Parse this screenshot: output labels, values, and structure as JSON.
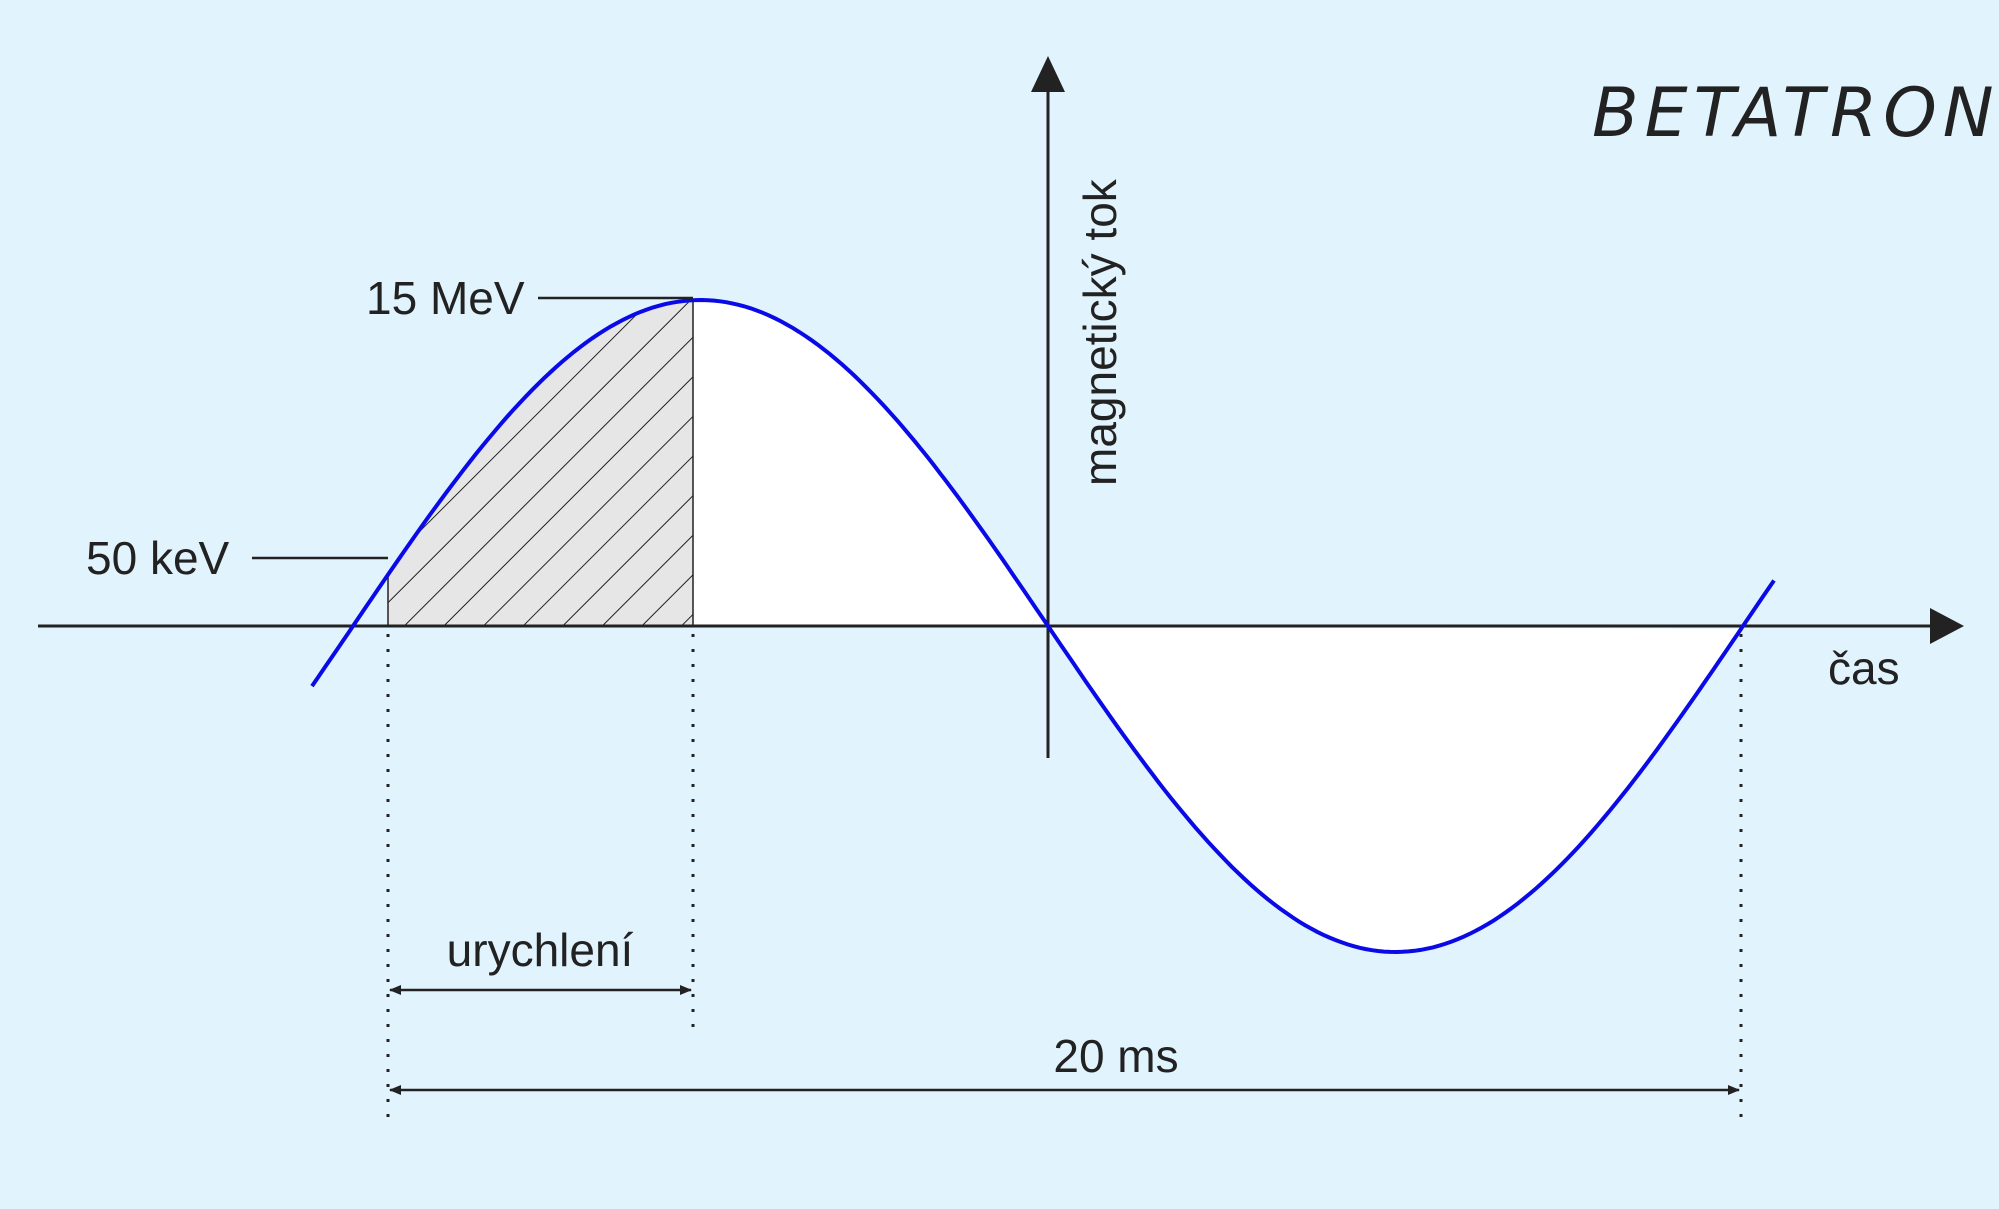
{
  "title": "BETATRON",
  "labels": {
    "y_axis": "magnetický tok",
    "x_axis": "čas",
    "energy_high": "15 MeV",
    "energy_low": "50 keV",
    "acceleration": "urychlení",
    "period": "20 ms"
  },
  "colors": {
    "background": "#e1f3fd",
    "curve": "#0a0ae6",
    "hatch_fill": "#e6e6e6",
    "lobe_fill": "#ffffff",
    "axis": "#222222"
  }
}
